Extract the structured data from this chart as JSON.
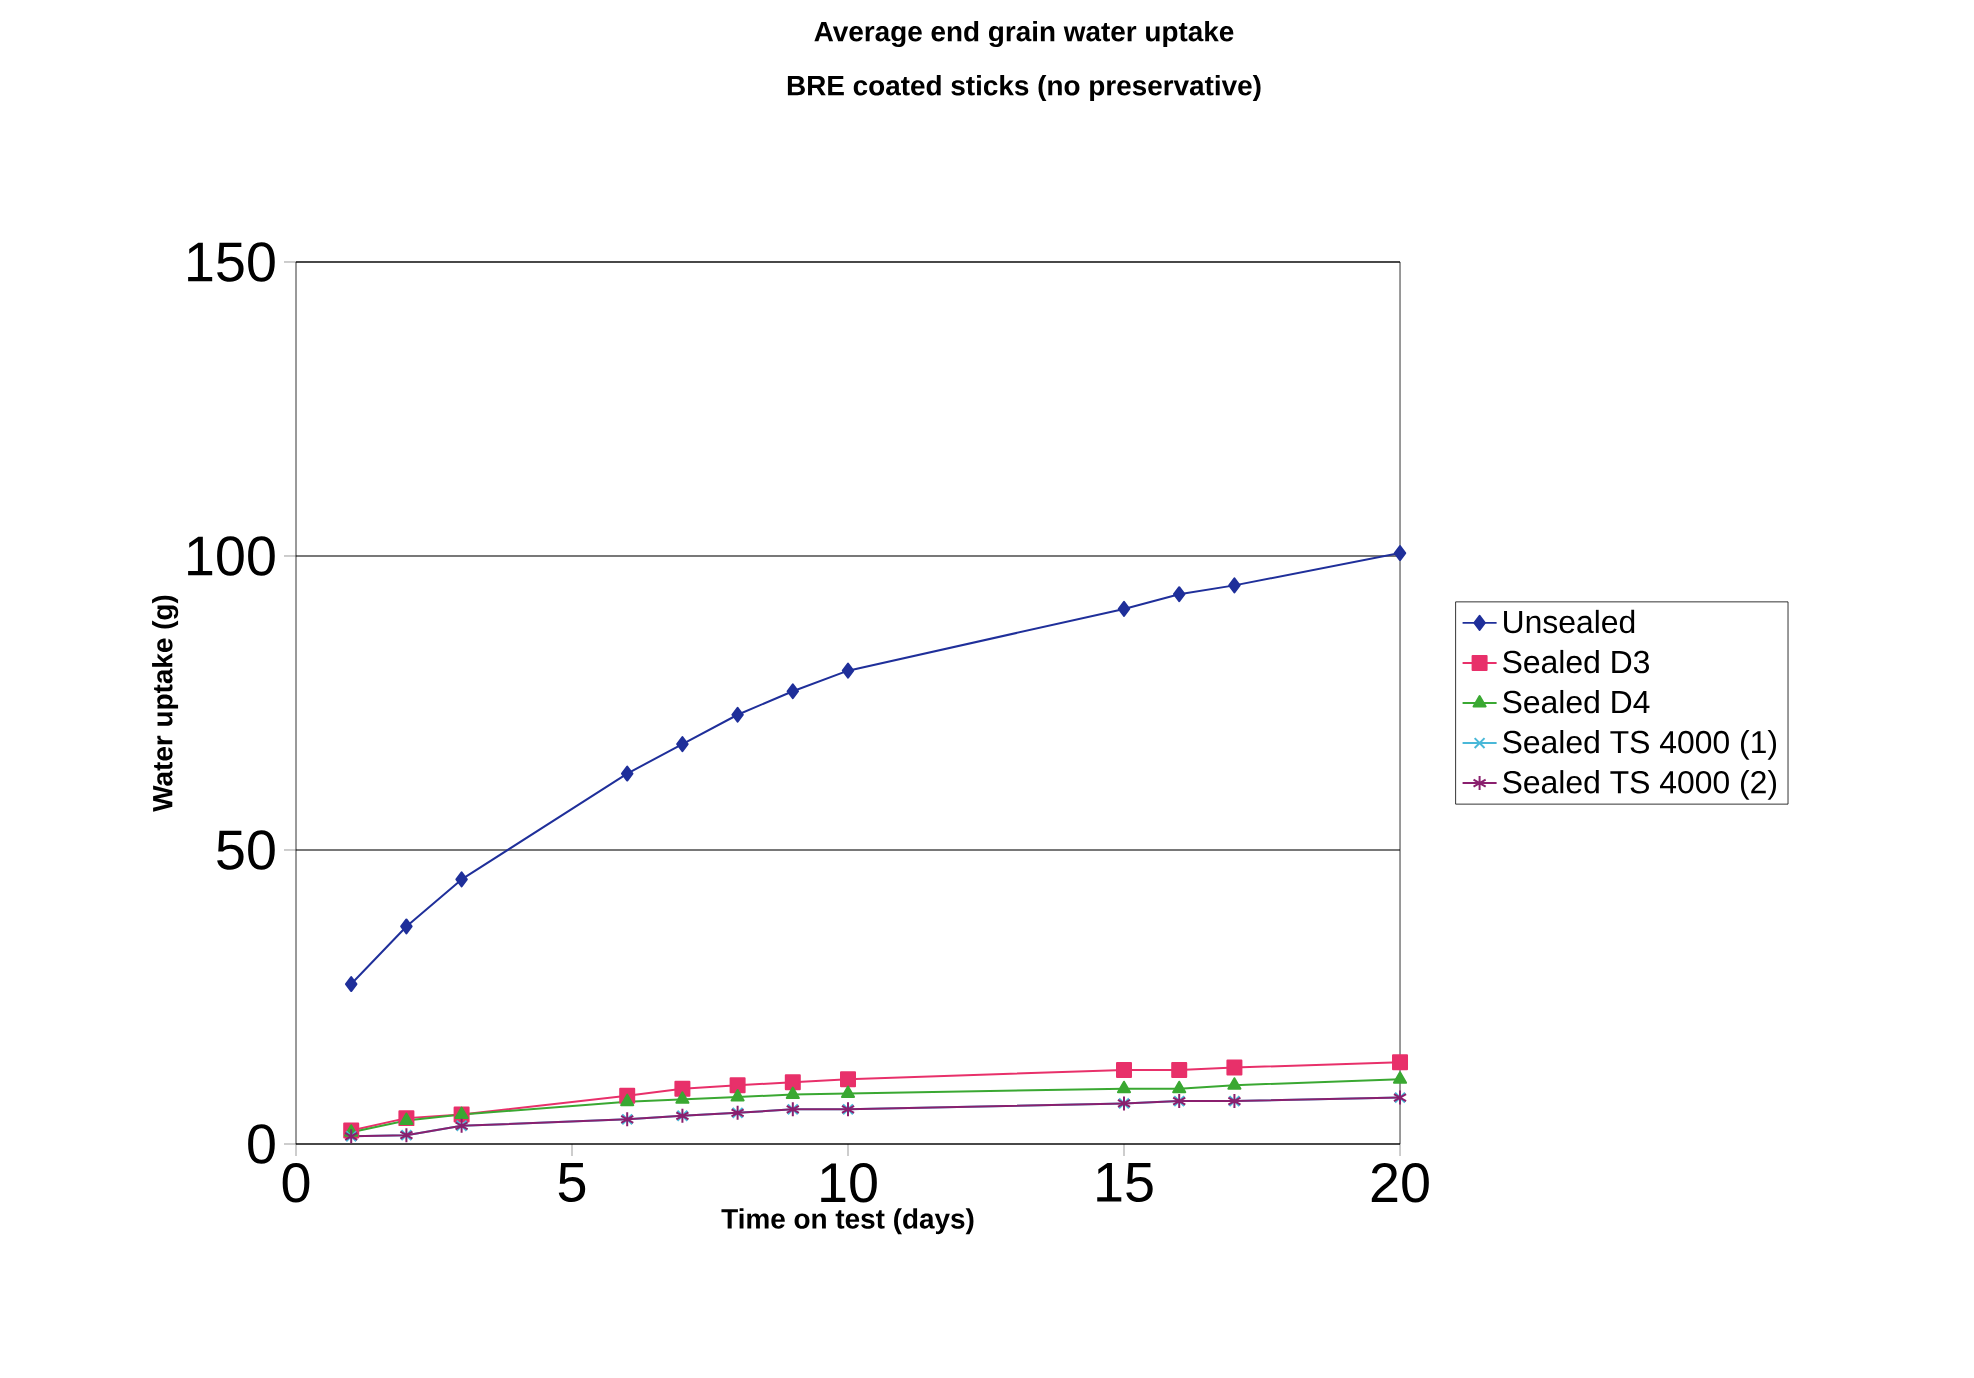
{
  "chart_data": {
    "type": "line",
    "title": "Average end grain water uptake",
    "subtitle": "BRE coated sticks (no preservative)",
    "xlabel": "Time on test (days)",
    "ylabel": "Water uptake (g)",
    "x": [
      1,
      2,
      3,
      6,
      7,
      8,
      9,
      10,
      15,
      16,
      17,
      20
    ],
    "xlim": [
      0,
      20
    ],
    "xticks": [
      0,
      5,
      10,
      15,
      20
    ],
    "ylim": [
      0,
      150
    ],
    "yticks": [
      0,
      50,
      100,
      150
    ],
    "grid": "y",
    "legend": "right",
    "series": [
      {
        "name": "Unsealed",
        "color": "#1f2f9a",
        "marker": "diamond",
        "values": [
          27.2,
          37,
          45,
          63,
          68,
          73,
          77,
          80.5,
          91,
          93.5,
          95,
          100.5
        ]
      },
      {
        "name": "Sealed D3",
        "color": "#e8306a",
        "marker": "square",
        "values": [
          2.3,
          4.4,
          5,
          8.2,
          9.4,
          10,
          10.5,
          11,
          12.6,
          12.6,
          13,
          13.9
        ]
      },
      {
        "name": "Sealed D4",
        "color": "#3aa832",
        "marker": "triangle",
        "values": [
          2,
          4,
          5,
          7.2,
          7.6,
          8,
          8.4,
          8.6,
          9.4,
          9.4,
          10,
          11
        ]
      },
      {
        "name": "Sealed TS 4000 (1)",
        "color": "#49b8d8",
        "marker": "cross",
        "values": [
          1.3,
          1.5,
          3.1,
          4.2,
          4.8,
          5.3,
          5.9,
          5.9,
          6.9,
          7.3,
          7.3,
          7.9
        ]
      },
      {
        "name": "Sealed TS 4000 (2)",
        "color": "#8a1f6e",
        "marker": "cross",
        "values": [
          1.3,
          1.5,
          3.1,
          4.2,
          4.8,
          5.3,
          5.9,
          5.9,
          6.9,
          7.3,
          7.3,
          7.9
        ]
      }
    ]
  }
}
